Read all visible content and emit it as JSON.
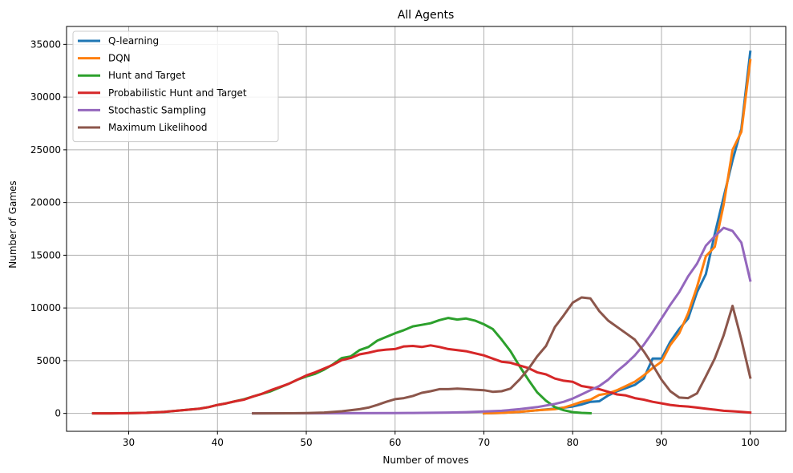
{
  "chart_data": {
    "type": "line",
    "title": "All Agents",
    "xlabel": "Number of moves",
    "ylabel": "Number of Games",
    "xlim": [
      23,
      104
    ],
    "ylim": [
      -1700,
      36700
    ],
    "xticks": [
      30,
      40,
      50,
      60,
      70,
      80,
      90,
      100
    ],
    "yticks": [
      0,
      5000,
      10000,
      15000,
      20000,
      25000,
      30000,
      35000
    ],
    "grid": true,
    "legend_position": "top-left",
    "series": [
      {
        "name": "Q-learning",
        "color": "#1f77b4",
        "points": [
          [
            70,
            0
          ],
          [
            72,
            50
          ],
          [
            74,
            150
          ],
          [
            76,
            300
          ],
          [
            78,
            450
          ],
          [
            80,
            650
          ],
          [
            81,
            850
          ],
          [
            82,
            1100
          ],
          [
            83,
            1150
          ],
          [
            84,
            1700
          ],
          [
            85,
            2100
          ],
          [
            86,
            2400
          ],
          [
            87,
            2700
          ],
          [
            88,
            3300
          ],
          [
            89,
            5200
          ],
          [
            90,
            5200
          ],
          [
            91,
            6800
          ],
          [
            92,
            8000
          ],
          [
            93,
            9000
          ],
          [
            94,
            11500
          ],
          [
            95,
            13200
          ],
          [
            96,
            17000
          ],
          [
            97,
            20500
          ],
          [
            98,
            24000
          ],
          [
            99,
            27000
          ],
          [
            100,
            34300
          ]
        ]
      },
      {
        "name": "DQN",
        "color": "#ff7f0e",
        "points": [
          [
            70,
            0
          ],
          [
            72,
            50
          ],
          [
            74,
            150
          ],
          [
            76,
            300
          ],
          [
            78,
            400
          ],
          [
            79,
            550
          ],
          [
            80,
            800
          ],
          [
            81,
            1100
          ],
          [
            82,
            1300
          ],
          [
            83,
            1750
          ],
          [
            84,
            1900
          ],
          [
            85,
            2200
          ],
          [
            86,
            2600
          ],
          [
            87,
            3000
          ],
          [
            88,
            3600
          ],
          [
            89,
            4300
          ],
          [
            90,
            4900
          ],
          [
            91,
            6500
          ],
          [
            92,
            7600
          ],
          [
            93,
            9500
          ],
          [
            94,
            12000
          ],
          [
            95,
            14900
          ],
          [
            96,
            15800
          ],
          [
            97,
            19800
          ],
          [
            98,
            25000
          ],
          [
            99,
            26700
          ],
          [
            100,
            33500
          ]
        ]
      },
      {
        "name": "Hunt and Target",
        "color": "#2ca02c",
        "points": [
          [
            26,
            0
          ],
          [
            28,
            0
          ],
          [
            30,
            20
          ],
          [
            32,
            60
          ],
          [
            34,
            150
          ],
          [
            36,
            300
          ],
          [
            38,
            450
          ],
          [
            39,
            600
          ],
          [
            40,
            800
          ],
          [
            41,
            950
          ],
          [
            42,
            1150
          ],
          [
            43,
            1350
          ],
          [
            44,
            1600
          ],
          [
            45,
            1850
          ],
          [
            46,
            2100
          ],
          [
            47,
            2450
          ],
          [
            48,
            2800
          ],
          [
            49,
            3200
          ],
          [
            50,
            3500
          ],
          [
            51,
            3750
          ],
          [
            52,
            4150
          ],
          [
            53,
            4650
          ],
          [
            54,
            5250
          ],
          [
            55,
            5400
          ],
          [
            56,
            6000
          ],
          [
            57,
            6300
          ],
          [
            58,
            6900
          ],
          [
            59,
            7250
          ],
          [
            60,
            7600
          ],
          [
            61,
            7900
          ],
          [
            62,
            8250
          ],
          [
            63,
            8400
          ],
          [
            64,
            8550
          ],
          [
            65,
            8850
          ],
          [
            66,
            9050
          ],
          [
            67,
            8900
          ],
          [
            68,
            9000
          ],
          [
            69,
            8800
          ],
          [
            70,
            8450
          ],
          [
            71,
            8000
          ],
          [
            72,
            7000
          ],
          [
            73,
            5900
          ],
          [
            74,
            4500
          ],
          [
            75,
            3200
          ],
          [
            76,
            2000
          ],
          [
            77,
            1200
          ],
          [
            78,
            600
          ],
          [
            79,
            300
          ],
          [
            80,
            120
          ],
          [
            81,
            50
          ],
          [
            82,
            20
          ]
        ]
      },
      {
        "name": "Probabilistic Hunt and Target",
        "color": "#d62728",
        "points": [
          [
            26,
            0
          ],
          [
            28,
            0
          ],
          [
            30,
            20
          ],
          [
            32,
            60
          ],
          [
            34,
            150
          ],
          [
            36,
            300
          ],
          [
            38,
            450
          ],
          [
            39,
            600
          ],
          [
            40,
            800
          ],
          [
            41,
            950
          ],
          [
            42,
            1150
          ],
          [
            43,
            1300
          ],
          [
            44,
            1600
          ],
          [
            45,
            1850
          ],
          [
            46,
            2200
          ],
          [
            47,
            2500
          ],
          [
            48,
            2800
          ],
          [
            49,
            3200
          ],
          [
            50,
            3600
          ],
          [
            51,
            3900
          ],
          [
            52,
            4250
          ],
          [
            53,
            4600
          ],
          [
            54,
            5050
          ],
          [
            55,
            5250
          ],
          [
            56,
            5600
          ],
          [
            57,
            5750
          ],
          [
            58,
            5950
          ],
          [
            59,
            6050
          ],
          [
            60,
            6100
          ],
          [
            61,
            6350
          ],
          [
            62,
            6400
          ],
          [
            63,
            6300
          ],
          [
            64,
            6450
          ],
          [
            65,
            6300
          ],
          [
            66,
            6100
          ],
          [
            67,
            6000
          ],
          [
            68,
            5900
          ],
          [
            69,
            5700
          ],
          [
            70,
            5500
          ],
          [
            71,
            5200
          ],
          [
            72,
            4900
          ],
          [
            73,
            4800
          ],
          [
            74,
            4550
          ],
          [
            75,
            4300
          ],
          [
            76,
            3900
          ],
          [
            77,
            3700
          ],
          [
            78,
            3300
          ],
          [
            79,
            3100
          ],
          [
            80,
            3000
          ],
          [
            81,
            2600
          ],
          [
            82,
            2450
          ],
          [
            83,
            2300
          ],
          [
            84,
            2050
          ],
          [
            85,
            1800
          ],
          [
            86,
            1700
          ],
          [
            87,
            1450
          ],
          [
            88,
            1300
          ],
          [
            89,
            1100
          ],
          [
            90,
            950
          ],
          [
            91,
            800
          ],
          [
            92,
            700
          ],
          [
            93,
            650
          ],
          [
            94,
            550
          ],
          [
            95,
            450
          ],
          [
            96,
            350
          ],
          [
            97,
            250
          ],
          [
            98,
            200
          ],
          [
            99,
            150
          ],
          [
            100,
            80
          ]
        ]
      },
      {
        "name": "Stochastic Sampling",
        "color": "#9467bd",
        "points": [
          [
            44,
            0
          ],
          [
            50,
            10
          ],
          [
            55,
            20
          ],
          [
            60,
            30
          ],
          [
            62,
            40
          ],
          [
            64,
            60
          ],
          [
            66,
            80
          ],
          [
            68,
            120
          ],
          [
            70,
            180
          ],
          [
            72,
            250
          ],
          [
            74,
            400
          ],
          [
            76,
            600
          ],
          [
            78,
            900
          ],
          [
            79,
            1100
          ],
          [
            80,
            1400
          ],
          [
            81,
            1800
          ],
          [
            82,
            2200
          ],
          [
            83,
            2600
          ],
          [
            84,
            3200
          ],
          [
            85,
            4000
          ],
          [
            86,
            4700
          ],
          [
            87,
            5500
          ],
          [
            88,
            6500
          ],
          [
            89,
            7700
          ],
          [
            90,
            9000
          ],
          [
            91,
            10300
          ],
          [
            92,
            11500
          ],
          [
            93,
            13000
          ],
          [
            94,
            14200
          ],
          [
            95,
            15900
          ],
          [
            96,
            16800
          ],
          [
            97,
            17600
          ],
          [
            98,
            17300
          ],
          [
            99,
            16200
          ],
          [
            100,
            12600
          ]
        ]
      },
      {
        "name": "Maximum Likelihood",
        "color": "#8c564b",
        "points": [
          [
            44,
            0
          ],
          [
            48,
            10
          ],
          [
            50,
            30
          ],
          [
            52,
            80
          ],
          [
            54,
            200
          ],
          [
            56,
            400
          ],
          [
            57,
            550
          ],
          [
            58,
            800
          ],
          [
            59,
            1100
          ],
          [
            60,
            1350
          ],
          [
            61,
            1450
          ],
          [
            62,
            1650
          ],
          [
            63,
            1950
          ],
          [
            64,
            2100
          ],
          [
            65,
            2300
          ],
          [
            66,
            2300
          ],
          [
            67,
            2350
          ],
          [
            68,
            2300
          ],
          [
            69,
            2250
          ],
          [
            70,
            2200
          ],
          [
            71,
            2050
          ],
          [
            72,
            2100
          ],
          [
            73,
            2350
          ],
          [
            74,
            3200
          ],
          [
            75,
            4200
          ],
          [
            76,
            5400
          ],
          [
            77,
            6400
          ],
          [
            78,
            8200
          ],
          [
            79,
            9300
          ],
          [
            80,
            10500
          ],
          [
            81,
            11000
          ],
          [
            82,
            10900
          ],
          [
            83,
            9700
          ],
          [
            84,
            8800
          ],
          [
            85,
            8200
          ],
          [
            86,
            7600
          ],
          [
            87,
            7000
          ],
          [
            88,
            5900
          ],
          [
            89,
            4600
          ],
          [
            90,
            3200
          ],
          [
            91,
            2100
          ],
          [
            92,
            1500
          ],
          [
            93,
            1450
          ],
          [
            94,
            1900
          ],
          [
            95,
            3500
          ],
          [
            96,
            5200
          ],
          [
            97,
            7400
          ],
          [
            98,
            10200
          ],
          [
            99,
            7000
          ],
          [
            100,
            3400
          ]
        ]
      }
    ]
  }
}
